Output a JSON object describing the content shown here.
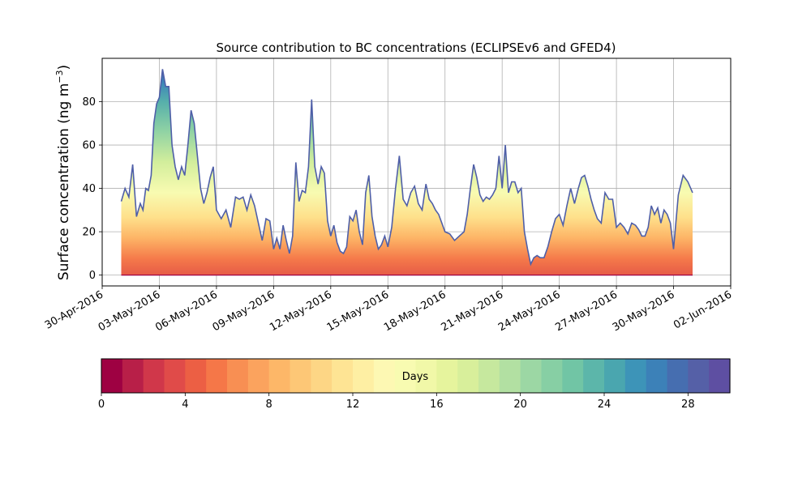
{
  "chart_data": {
    "type": "area",
    "subtype": "stacked",
    "title": "Source contribution to BC concentrations (ECLIPSEv6 and GFED4)",
    "ylabel": "Surface concentration (ng m⁻³)",
    "ylabel_main": "Surface concentration (ng m",
    "ylabel_sup": "−3",
    "ylabel_close": ")",
    "xlabel": "",
    "x_type": "date",
    "x_start": "2016-05-01",
    "x_end": "2016-05-31",
    "xlim": [
      "2016-04-30",
      "2016-06-02"
    ],
    "ylim": [
      -5,
      100
    ],
    "grid": true,
    "x_ticks": [
      "30-Apr-2016",
      "03-May-2016",
      "06-May-2016",
      "09-May-2016",
      "12-May-2016",
      "15-May-2016",
      "18-May-2016",
      "21-May-2016",
      "24-May-2016",
      "27-May-2016",
      "30-May-2016",
      "02-Jun-2016"
    ],
    "y_ticks": [
      0,
      20,
      40,
      60,
      80
    ],
    "total_profile": [
      [
        "2016-05-01",
        34
      ],
      [
        "2016-05-01",
        40
      ],
      [
        "2016-05-01",
        36
      ],
      [
        "2016-05-01",
        51
      ],
      [
        "2016-05-01",
        27
      ],
      [
        "2016-05-02",
        33
      ],
      [
        "2016-05-02",
        30
      ],
      [
        "2016-05-02",
        40
      ],
      [
        "2016-05-02",
        39
      ],
      [
        "2016-05-02",
        46
      ],
      [
        "2016-05-02",
        70
      ],
      [
        "2016-05-02",
        79
      ],
      [
        "2016-05-03",
        82
      ],
      [
        "2016-05-03",
        95
      ],
      [
        "2016-05-03",
        87
      ],
      [
        "2016-05-03",
        87
      ],
      [
        "2016-05-03",
        60
      ],
      [
        "2016-05-03",
        50
      ],
      [
        "2016-05-04",
        44
      ],
      [
        "2016-05-04",
        50
      ],
      [
        "2016-05-04",
        46
      ],
      [
        "2016-05-04",
        60
      ],
      [
        "2016-05-04",
        76
      ],
      [
        "2016-05-04",
        70
      ],
      [
        "2016-05-05",
        55
      ],
      [
        "2016-05-05",
        40
      ],
      [
        "2016-05-05",
        33
      ],
      [
        "2016-05-05",
        38
      ],
      [
        "2016-05-05",
        45
      ],
      [
        "2016-05-05",
        50
      ],
      [
        "2016-05-06",
        30
      ],
      [
        "2016-05-06",
        26
      ],
      [
        "2016-05-06",
        30
      ],
      [
        "2016-05-06",
        22
      ],
      [
        "2016-05-07",
        36
      ],
      [
        "2016-05-07",
        35
      ],
      [
        "2016-05-07",
        36
      ],
      [
        "2016-05-07",
        30
      ],
      [
        "2016-05-07",
        37
      ],
      [
        "2016-05-08",
        32
      ],
      [
        "2016-05-08",
        24
      ],
      [
        "2016-05-08",
        16
      ],
      [
        "2016-05-08",
        26
      ],
      [
        "2016-05-08",
        25
      ],
      [
        "2016-05-09",
        12
      ],
      [
        "2016-05-09",
        17
      ],
      [
        "2016-05-09",
        12
      ],
      [
        "2016-05-09",
        23
      ],
      [
        "2016-05-09",
        16
      ],
      [
        "2016-05-09",
        10
      ],
      [
        "2016-05-10",
        18
      ],
      [
        "2016-05-10",
        52
      ],
      [
        "2016-05-10",
        34
      ],
      [
        "2016-05-10",
        39
      ],
      [
        "2016-05-10",
        38
      ],
      [
        "2016-05-10",
        50
      ],
      [
        "2016-05-11",
        81
      ],
      [
        "2016-05-11",
        50
      ],
      [
        "2016-05-11",
        42
      ],
      [
        "2016-05-11",
        50
      ],
      [
        "2016-05-11",
        47
      ],
      [
        "2016-05-11",
        25
      ],
      [
        "2016-05-12",
        18
      ],
      [
        "2016-05-12",
        23
      ],
      [
        "2016-05-12",
        15
      ],
      [
        "2016-05-12",
        11
      ],
      [
        "2016-05-12",
        10
      ],
      [
        "2016-05-12",
        13
      ],
      [
        "2016-05-13",
        27
      ],
      [
        "2016-05-13",
        25
      ],
      [
        "2016-05-13",
        30
      ],
      [
        "2016-05-13",
        20
      ],
      [
        "2016-05-13",
        14
      ],
      [
        "2016-05-13",
        38
      ],
      [
        "2016-05-14",
        46
      ],
      [
        "2016-05-14",
        27
      ],
      [
        "2016-05-14",
        18
      ],
      [
        "2016-05-14",
        12
      ],
      [
        "2016-05-14",
        14
      ],
      [
        "2016-05-14",
        18
      ],
      [
        "2016-05-15",
        13
      ],
      [
        "2016-05-15",
        22
      ],
      [
        "2016-05-15",
        40
      ],
      [
        "2016-05-15",
        55
      ],
      [
        "2016-05-15",
        35
      ],
      [
        "2016-05-16",
        32
      ],
      [
        "2016-05-16",
        38
      ],
      [
        "2016-05-16",
        41
      ],
      [
        "2016-05-16",
        33
      ],
      [
        "2016-05-16",
        30
      ],
      [
        "2016-05-17",
        42
      ],
      [
        "2016-05-17",
        35
      ],
      [
        "2016-05-17",
        33
      ],
      [
        "2016-05-17",
        30
      ],
      [
        "2016-05-17",
        28
      ],
      [
        "2016-05-17",
        24
      ],
      [
        "2016-05-18",
        20
      ],
      [
        "2016-05-18",
        19
      ],
      [
        "2016-05-18",
        16
      ],
      [
        "2016-05-18",
        18
      ],
      [
        "2016-05-19",
        20
      ],
      [
        "2016-05-19",
        28
      ],
      [
        "2016-05-19",
        40
      ],
      [
        "2016-05-19",
        51
      ],
      [
        "2016-05-19",
        45
      ],
      [
        "2016-05-19",
        37
      ],
      [
        "2016-05-20",
        34
      ],
      [
        "2016-05-20",
        36
      ],
      [
        "2016-05-20",
        35
      ],
      [
        "2016-05-20",
        37
      ],
      [
        "2016-05-20",
        40
      ],
      [
        "2016-05-20",
        55
      ],
      [
        "2016-05-21",
        40
      ],
      [
        "2016-05-21",
        60
      ],
      [
        "2016-05-21",
        38
      ],
      [
        "2016-05-21",
        43
      ],
      [
        "2016-05-21",
        43
      ],
      [
        "2016-05-21",
        38
      ],
      [
        "2016-05-22",
        40
      ],
      [
        "2016-05-22",
        20
      ],
      [
        "2016-05-22",
        12
      ],
      [
        "2016-05-22",
        5
      ],
      [
        "2016-05-22",
        8
      ],
      [
        "2016-05-22",
        9
      ],
      [
        "2016-05-23",
        8
      ],
      [
        "2016-05-23",
        8
      ],
      [
        "2016-05-23",
        13
      ],
      [
        "2016-05-23",
        20
      ],
      [
        "2016-05-23",
        26
      ],
      [
        "2016-05-24",
        28
      ],
      [
        "2016-05-24",
        23
      ],
      [
        "2016-05-24",
        32
      ],
      [
        "2016-05-24",
        40
      ],
      [
        "2016-05-24",
        33
      ],
      [
        "2016-05-25",
        40
      ],
      [
        "2016-05-25",
        45
      ],
      [
        "2016-05-25",
        46
      ],
      [
        "2016-05-25",
        41
      ],
      [
        "2016-05-25",
        35
      ],
      [
        "2016-05-25",
        30
      ],
      [
        "2016-05-26",
        26
      ],
      [
        "2016-05-26",
        24
      ],
      [
        "2016-05-26",
        38
      ],
      [
        "2016-05-26",
        35
      ],
      [
        "2016-05-26",
        35
      ],
      [
        "2016-05-27",
        22
      ],
      [
        "2016-05-27",
        24
      ],
      [
        "2016-05-27",
        22
      ],
      [
        "2016-05-27",
        19
      ],
      [
        "2016-05-27",
        24
      ],
      [
        "2016-05-28",
        23
      ],
      [
        "2016-05-28",
        21
      ],
      [
        "2016-05-28",
        18
      ],
      [
        "2016-05-28",
        18
      ],
      [
        "2016-05-28",
        22
      ],
      [
        "2016-05-28",
        32
      ],
      [
        "2016-05-29",
        28
      ],
      [
        "2016-05-29",
        31
      ],
      [
        "2016-05-29",
        24
      ],
      [
        "2016-05-29",
        30
      ],
      [
        "2016-05-29",
        28
      ],
      [
        "2016-05-29",
        24
      ],
      [
        "2016-05-30",
        12
      ],
      [
        "2016-05-30",
        37
      ],
      [
        "2016-05-30",
        46
      ],
      [
        "2016-05-30",
        43
      ],
      [
        "2016-05-31",
        38
      ]
    ],
    "colorbar": {
      "label": "Days",
      "min": 0,
      "max": 30,
      "ticks": [
        0,
        4,
        8,
        12,
        16,
        20,
        24,
        28
      ],
      "colors": [
        "#9e0142",
        "#b81f48",
        "#d0374a",
        "#e04b49",
        "#ec5f44",
        "#f57748",
        "#f88f53",
        "#fba35e",
        "#fdb768",
        "#fdc776",
        "#fdd685",
        "#fee494",
        "#feefa3",
        "#fdf8b3",
        "#f8fbb1",
        "#f1f8a8",
        "#e6f49d",
        "#d8ef9b",
        "#c6e89e",
        "#b2e0a2",
        "#9cd7a4",
        "#87cfa4",
        "#71c5a5",
        "#5cb6aa",
        "#4aa6af",
        "#3d94b8",
        "#3c81b8",
        "#466eb0",
        "#5560a7",
        "#5e4fa2"
      ]
    }
  }
}
